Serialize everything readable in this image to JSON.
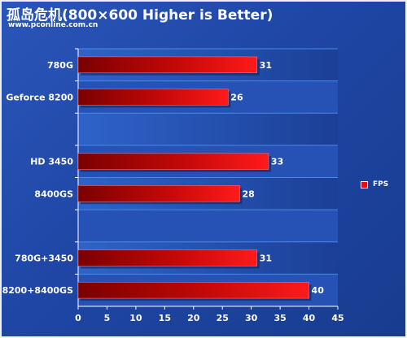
{
  "header": {
    "title": "孤岛危机(800×600  Higher is Better)",
    "subtitle": "www.pconline.com.cn"
  },
  "legend": {
    "label": "FPS",
    "color": "#e01010"
  },
  "chart_data": {
    "type": "bar",
    "orientation": "horizontal",
    "categories": [
      "780G",
      "Geforce 8200",
      "",
      "HD 3450",
      "8400GS",
      "",
      "780G+3450",
      "8200+8400GS"
    ],
    "series": [
      {
        "name": "FPS",
        "values": [
          31,
          26,
          null,
          33,
          28,
          null,
          31,
          40
        ]
      }
    ],
    "xlim": [
      0,
      45
    ],
    "xticks": [
      0,
      5,
      10,
      15,
      20,
      25,
      30,
      35,
      40,
      45
    ],
    "grid": true,
    "legend_position": "right",
    "bar_color": "#e01010",
    "background_color": "#1f46a5"
  }
}
